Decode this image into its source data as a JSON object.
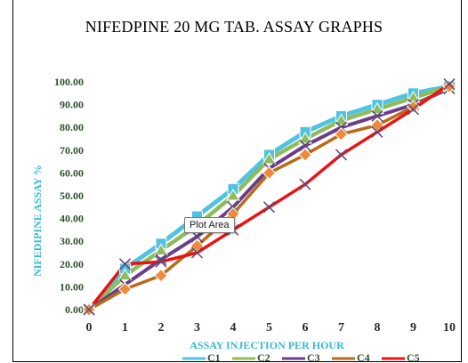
{
  "chart_data": {
    "type": "line",
    "title": "NIFEDPINE 20 MG TAB. ASSAY GRAPHS",
    "xlabel": "ASSAY INJECTION PER HOUR",
    "ylabel": "NIFEDIPINE ASSAY  %",
    "x": [
      0,
      1,
      2,
      3,
      4,
      5,
      6,
      7,
      8,
      9,
      10
    ],
    "xlim": [
      0,
      10
    ],
    "ylim": [
      0,
      100
    ],
    "y_tick_labels": [
      "0.00",
      "10.00",
      "20.00",
      "30.00",
      "40.00",
      "50.00",
      "60.00",
      "70.00",
      "80.00",
      "90.00",
      "100.00"
    ],
    "x_tick_labels": [
      "0",
      "1",
      "2",
      "3",
      "4",
      "5",
      "6",
      "7",
      "8",
      "9",
      "10"
    ],
    "legend_position": "bottom",
    "series": [
      {
        "name": "C1",
        "color": "#4fc3e0",
        "marker": "square",
        "values": [
          0,
          18,
          29,
          41,
          53,
          68,
          78,
          85,
          90,
          95,
          98
        ]
      },
      {
        "name": "C2",
        "color": "#8fbc5a",
        "marker": "triangle",
        "values": [
          0,
          15,
          26,
          37,
          50,
          66,
          75,
          83,
          88,
          93,
          98
        ]
      },
      {
        "name": "C3",
        "color": "#6a3d8c",
        "marker": "x",
        "values": [
          0,
          11,
          22,
          32,
          45,
          62,
          72,
          80,
          85,
          90,
          97
        ]
      },
      {
        "name": "C4",
        "color": "#b86b1a",
        "marker": "diamond",
        "values": [
          0,
          9,
          15,
          28,
          42,
          60,
          68,
          77,
          81,
          89,
          98
        ]
      },
      {
        "name": "C5",
        "color": "#ee1111",
        "marker": "x",
        "values": [
          0,
          20,
          21,
          25,
          35,
          45,
          55,
          68,
          78,
          88,
          99
        ]
      }
    ]
  },
  "tooltip": {
    "label": "Plot Area"
  }
}
